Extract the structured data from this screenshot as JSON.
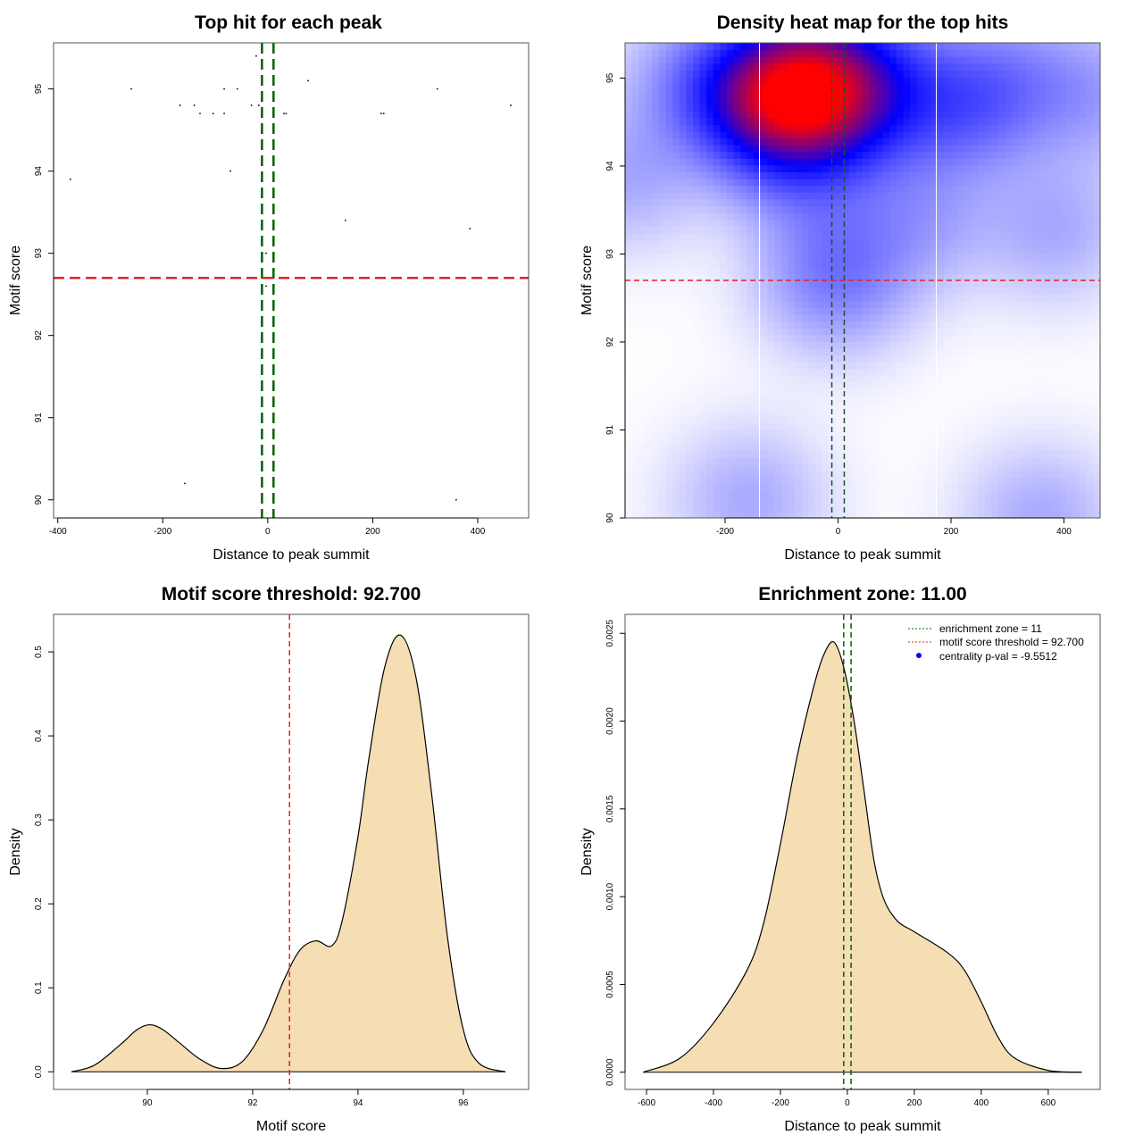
{
  "chart_data": [
    {
      "type": "scatter",
      "title": "Top hit for each peak",
      "xlabel": "Distance to peak summit",
      "ylabel": "Motif score",
      "xlim": [
        -408,
        497
      ],
      "ylim": [
        89.78,
        95.56
      ],
      "xticks": [
        -400,
        -200,
        0,
        200,
        400
      ],
      "yticks": [
        90,
        91,
        92,
        93,
        94,
        95
      ],
      "points": [
        [
          -22,
          95.4
        ],
        [
          -260,
          95.0
        ],
        [
          -83,
          95.0
        ],
        [
          -58,
          95.0
        ],
        [
          77,
          95.1
        ],
        [
          323,
          95.0
        ],
        [
          -167,
          94.8
        ],
        [
          -140,
          94.8
        ],
        [
          -31,
          94.8
        ],
        [
          -17,
          94.8
        ],
        [
          463,
          94.8
        ],
        [
          -129,
          94.7
        ],
        [
          -104,
          94.7
        ],
        [
          -83,
          94.7
        ],
        [
          31,
          94.7
        ],
        [
          35,
          94.7
        ],
        [
          216,
          94.7
        ],
        [
          221,
          94.7
        ],
        [
          -71,
          94.0
        ],
        [
          -376,
          93.9
        ],
        [
          148,
          93.4
        ],
        [
          385,
          93.3
        ],
        [
          -3,
          93.0
        ],
        [
          -3,
          92.6
        ],
        [
          -158,
          90.2
        ],
        [
          359,
          90.0
        ]
      ],
      "vlines": [
        -11,
        11
      ],
      "hline": 92.7,
      "vline_color": "#006400",
      "hline_color": "#e8201f"
    },
    {
      "type": "heatmap",
      "title": "Density heat map for the top hits",
      "xlabel": "Distance to peak summit",
      "ylabel": "Motif score",
      "xlim": [
        -377,
        464
      ],
      "ylim": [
        90,
        95.4
      ],
      "xticks": [
        -200,
        0,
        200,
        400
      ],
      "yticks": [
        90,
        91,
        92,
        93,
        94,
        95
      ],
      "colors": [
        "#ffffff",
        "#0000ff",
        "#ff0000"
      ],
      "white_vlines": [
        -139,
        174
      ],
      "vlines": [
        -11,
        11
      ],
      "hline": 92.7
    },
    {
      "type": "area",
      "title": "Motif score threshold: 92.700",
      "xlabel": "Motif score",
      "ylabel": "Density",
      "xlim": [
        88.22,
        97.24
      ],
      "ylim": [
        -0.021,
        0.5447
      ],
      "xticks": [
        90,
        92,
        94,
        96
      ],
      "yticks": [
        "0.0",
        "0.1",
        "0.2",
        "0.3",
        "0.4",
        "0.5"
      ],
      "fill": "#f5deb3",
      "vline": 92.7,
      "x": [
        88.56,
        89.0,
        89.5,
        89.8,
        90.05,
        90.3,
        90.6,
        91.0,
        91.4,
        91.8,
        92.2,
        92.6,
        92.9,
        93.2,
        93.5,
        93.7,
        94.0,
        94.2,
        94.5,
        94.8,
        95.1,
        95.4,
        95.7,
        96.0,
        96.3,
        96.8
      ],
      "y": [
        0,
        0.008,
        0.033,
        0.05,
        0.056,
        0.05,
        0.035,
        0.015,
        0.004,
        0.012,
        0.05,
        0.11,
        0.145,
        0.156,
        0.15,
        0.18,
        0.28,
        0.37,
        0.48,
        0.52,
        0.47,
        0.33,
        0.16,
        0.05,
        0.01,
        0
      ]
    },
    {
      "type": "area",
      "title": "Enrichment zone: 11.00",
      "xlabel": "Distance to peak summit",
      "ylabel": "Density",
      "xlim": [
        -664,
        755
      ],
      "ylim": [
        -9.8e-05,
        0.002608
      ],
      "xticks": [
        -600,
        -400,
        -200,
        0,
        200,
        400,
        600
      ],
      "yticks": [
        "0.0000",
        "0.0005",
        "0.0010",
        "0.0015",
        "0.0020",
        "0.0025"
      ],
      "fill": "#f5deb3",
      "vlines": [
        -11,
        11
      ],
      "x": [
        -610,
        -500,
        -400,
        -300,
        -250,
        -200,
        -150,
        -100,
        -70,
        -40,
        -10,
        20,
        50,
        80,
        110,
        150,
        200,
        300,
        350,
        400,
        450,
        500,
        600,
        700
      ],
      "y": [
        0,
        8e-05,
        0.00028,
        0.00058,
        0.00085,
        0.0013,
        0.0018,
        0.0022,
        0.00238,
        0.00245,
        0.0023,
        0.002,
        0.0016,
        0.0012,
        0.00098,
        0.00086,
        0.0008,
        0.00068,
        0.00058,
        0.0004,
        0.0002,
        8e-05,
        1e-05,
        0
      ],
      "legend": {
        "position": "top-right",
        "entries": [
          {
            "label": "enrichment zone = 11",
            "color": "#006400",
            "style": "dotted-line"
          },
          {
            "label": "motif score threshold = 92.700",
            "color": "#e8201f",
            "style": "dotted-line"
          },
          {
            "label": "centrality p-val = -9.5512",
            "color": "#0000ff",
            "style": "dot"
          }
        ]
      }
    }
  ]
}
